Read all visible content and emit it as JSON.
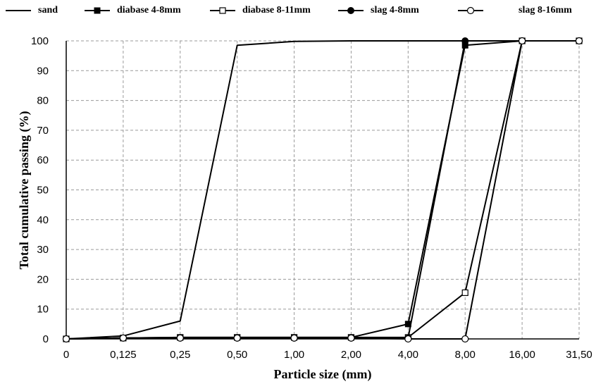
{
  "chart_data": {
    "type": "line",
    "xlabel": "Particle size (mm)",
    "ylabel": "Total cumulative passing (%)",
    "categories": [
      "0",
      "0,125",
      "0,25",
      "0,50",
      "1,00",
      "2,00",
      "4,00",
      "8,00",
      "16,00",
      "31,50"
    ],
    "y_ticks": [
      "0",
      "10",
      "20",
      "30",
      "40",
      "50",
      "60",
      "70",
      "80",
      "90",
      "100"
    ],
    "ylim": [
      0,
      100
    ],
    "grid": "dashed",
    "legend_position": "top",
    "series": [
      {
        "name": "sand",
        "marker": "none",
        "values": [
          0,
          1,
          6,
          98.5,
          99.8,
          100,
          100,
          100,
          100,
          100
        ]
      },
      {
        "name": "diabase 4-8mm",
        "marker": "filled-square",
        "values": [
          0,
          0.3,
          0.5,
          0.5,
          0.5,
          0.5,
          5,
          98.5,
          100,
          100
        ]
      },
      {
        "name": "diabase 8-11mm",
        "marker": "open-square",
        "values": [
          0,
          0.3,
          0.5,
          0.5,
          0.5,
          0.5,
          0.5,
          15.5,
          100,
          100
        ]
      },
      {
        "name": "slag 4-8mm",
        "marker": "filled-circle",
        "values": [
          0,
          0.3,
          0.3,
          0.3,
          0.3,
          0.3,
          0.3,
          100,
          100,
          100
        ]
      },
      {
        "name": "slag 8-16mm",
        "marker": "open-circle",
        "values": [
          0,
          0.3,
          0.3,
          0.3,
          0.3,
          0.3,
          0,
          0,
          100,
          100
        ]
      }
    ]
  }
}
